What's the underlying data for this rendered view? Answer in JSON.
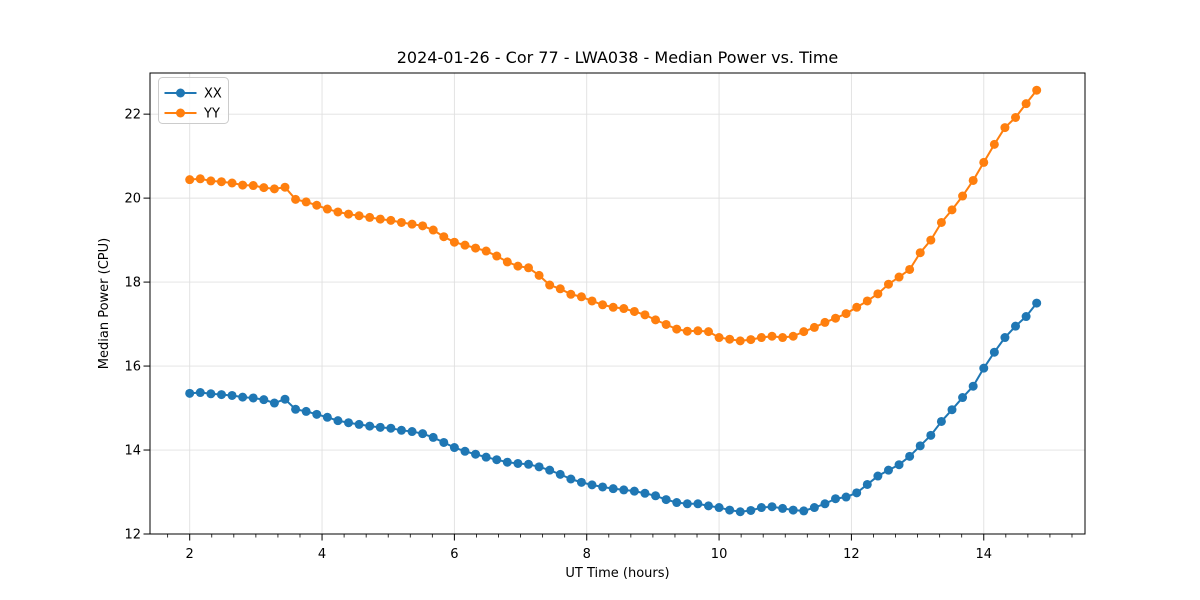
{
  "chart_data": {
    "type": "line",
    "title": "2024-01-26 - Cor 77 - LWA038 - Median Power vs. Time",
    "xlabel": "UT Time (hours)",
    "ylabel": "Median Power (CPU)",
    "xlim": [
      1.4,
      15.53
    ],
    "ylim": [
      12,
      22.98
    ],
    "xticks": [
      2,
      4,
      6,
      8,
      10,
      12,
      14
    ],
    "yticks": [
      12,
      14,
      16,
      18,
      20,
      22
    ],
    "x_minor_tick_step": 0.3333333,
    "grid": "major-on-light-gray",
    "legend_position": "upper-left",
    "marker": "circle",
    "x": [
      2.0,
      2.16,
      2.32,
      2.48,
      2.64,
      2.8,
      2.96,
      3.12,
      3.28,
      3.44,
      3.6,
      3.76,
      3.92,
      4.08,
      4.24,
      4.4,
      4.56,
      4.72,
      4.88,
      5.04,
      5.2,
      5.36,
      5.52,
      5.68,
      5.84,
      6.0,
      6.16,
      6.32,
      6.48,
      6.64,
      6.8,
      6.96,
      7.12,
      7.28,
      7.44,
      7.6,
      7.76,
      7.92,
      8.08,
      8.24,
      8.4,
      8.56,
      8.72,
      8.88,
      9.04,
      9.2,
      9.36,
      9.52,
      9.68,
      9.84,
      10.0,
      10.16,
      10.32,
      10.48,
      10.64,
      10.8,
      10.96,
      11.12,
      11.28,
      11.44,
      11.6,
      11.76,
      11.92,
      12.08,
      12.24,
      12.4,
      12.56,
      12.72,
      12.88,
      13.04,
      13.2,
      13.36,
      13.52,
      13.68,
      13.84,
      14.0,
      14.16,
      14.32,
      14.48,
      14.64,
      14.8
    ],
    "series": [
      {
        "name": "XX",
        "color": "#1f77b4",
        "values": [
          15.35,
          15.37,
          15.34,
          15.32,
          15.3,
          15.26,
          15.24,
          15.2,
          15.12,
          15.21,
          14.97,
          14.92,
          14.85,
          14.78,
          14.7,
          14.65,
          14.61,
          14.57,
          14.54,
          14.52,
          14.47,
          14.44,
          14.39,
          14.3,
          14.18,
          14.06,
          13.97,
          13.9,
          13.83,
          13.77,
          13.71,
          13.68,
          13.66,
          13.6,
          13.52,
          13.42,
          13.31,
          13.23,
          13.17,
          13.12,
          13.08,
          13.05,
          13.02,
          12.97,
          12.91,
          12.82,
          12.75,
          12.72,
          12.72,
          12.67,
          12.63,
          12.57,
          12.53,
          12.56,
          12.63,
          12.65,
          12.61,
          12.57,
          12.55,
          12.63,
          12.72,
          12.84,
          12.88,
          12.98,
          13.18,
          13.38,
          13.52,
          13.65,
          13.85,
          14.1,
          14.35,
          14.68,
          14.96,
          15.25,
          15.52,
          15.95,
          16.33,
          16.68,
          16.95,
          17.18,
          17.5
        ]
      },
      {
        "name": "YY",
        "color": "#ff7f0e",
        "values": [
          20.44,
          20.46,
          20.41,
          20.39,
          20.36,
          20.31,
          20.3,
          20.25,
          20.22,
          20.26,
          19.97,
          19.91,
          19.83,
          19.74,
          19.67,
          19.62,
          19.58,
          19.54,
          19.5,
          19.47,
          19.42,
          19.38,
          19.34,
          19.24,
          19.08,
          18.95,
          18.88,
          18.81,
          18.74,
          18.62,
          18.48,
          18.38,
          18.34,
          18.16,
          17.93,
          17.84,
          17.71,
          17.65,
          17.55,
          17.46,
          17.4,
          17.37,
          17.3,
          17.22,
          17.1,
          16.99,
          16.88,
          16.83,
          16.84,
          16.82,
          16.68,
          16.64,
          16.6,
          16.63,
          16.68,
          16.71,
          16.68,
          16.71,
          16.82,
          16.92,
          17.04,
          17.14,
          17.25,
          17.4,
          17.55,
          17.72,
          17.95,
          18.12,
          18.3,
          18.7,
          19.0,
          19.42,
          19.72,
          20.05,
          20.42,
          20.85,
          21.28,
          21.68,
          21.92,
          22.25,
          22.57
        ]
      }
    ]
  },
  "style": {
    "grid_color": "#e0e0e0",
    "spine_color": "#000000",
    "legend_border_color": "#cccccc",
    "legend_fill": "rgba(255,255,255,0.8)"
  }
}
